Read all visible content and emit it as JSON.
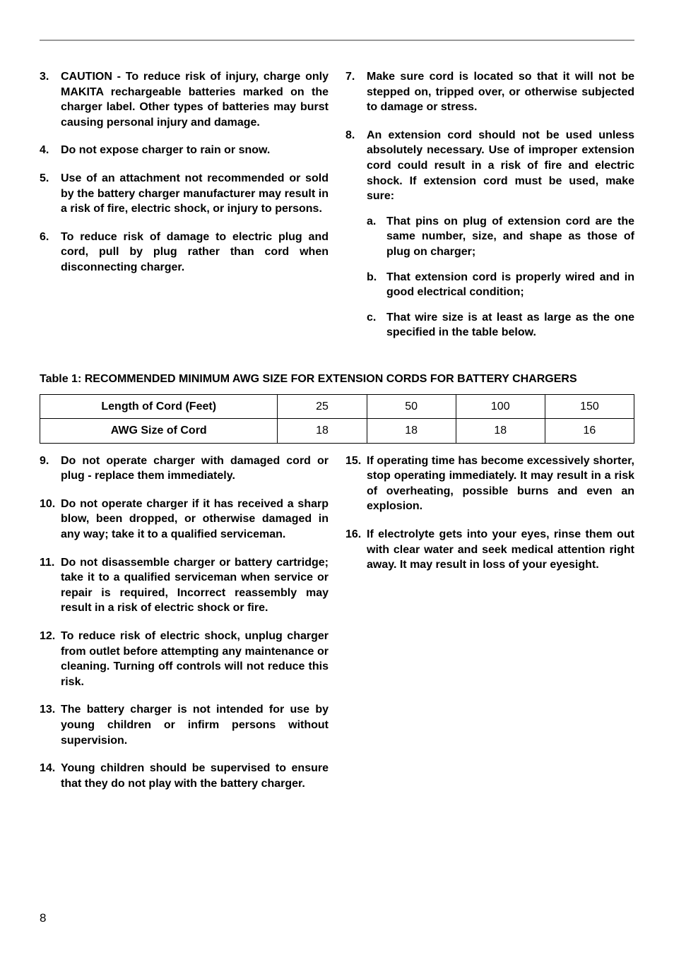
{
  "fontsize_body": 16,
  "fontsize_table_caption": 16,
  "fontsize_page_num": 17,
  "line_height": 1.35,
  "text_color": "#000000",
  "rule_color": "#999999",
  "top_left_list": [
    {
      "num": "3.",
      "text": "CAUTION - To reduce risk of injury, charge only MAKITA rechargeable batteries marked on the charger label. Other types of batteries may burst causing personal injury and damage."
    },
    {
      "num": "4.",
      "text": "Do not expose charger to rain or snow."
    },
    {
      "num": "5.",
      "text": "Use of an attachment not recommended or sold by the battery charger manufacturer may result in a risk of fire, electric shock, or injury to persons."
    },
    {
      "num": "6.",
      "text": "To reduce risk of damage to electric plug and cord, pull by plug rather than cord when disconnecting charger."
    }
  ],
  "top_right_list": [
    {
      "num": "7.",
      "text": "Make sure cord is located so that it will not be stepped on, tripped over, or otherwise subjected to damage or stress."
    },
    {
      "num": "8.",
      "text": "An extension cord should not be used unless absolutely necessary. Use of improper extension cord could result in a risk of fire and electric shock. If extension cord must be used, make sure:",
      "sub": [
        {
          "num": "a.",
          "text": "That pins on plug of extension cord are the same number, size, and shape as those of plug on charger;"
        },
        {
          "num": "b.",
          "text": "That extension cord is properly wired and in good electrical condition;"
        },
        {
          "num": "c.",
          "text": "That wire size is at least as large as the one specified in the table below."
        }
      ]
    }
  ],
  "table_caption": "Table 1: RECOMMENDED MINIMUM AWG SIZE FOR EXTENSION CORDS FOR BATTERY CHARGERS",
  "table": {
    "columns": [
      "Length of Cord (Feet)",
      "25",
      "50",
      "100",
      "150"
    ],
    "rows": [
      [
        "AWG Size of Cord",
        "18",
        "18",
        "18",
        "16"
      ]
    ],
    "col_widths": [
      "40%",
      "15%",
      "15%",
      "15%",
      "15%"
    ],
    "border_color": "#000000"
  },
  "bottom_left_list": [
    {
      "num": "9.",
      "text": "Do not operate charger with damaged cord or plug - replace them immediately."
    },
    {
      "num": "10.",
      "text": "Do not operate charger if it has received a sharp blow, been dropped, or otherwise damaged in any way; take it to a qualified serviceman."
    },
    {
      "num": "11.",
      "text": "Do not disassemble charger or battery cartridge; take it to a qualified serviceman when service or repair is required, Incorrect reassembly may result in a risk of electric shock or fire."
    },
    {
      "num": "12.",
      "text": "To reduce risk of electric shock, unplug charger from outlet before attempting any maintenance or cleaning. Turning off controls will not reduce this risk."
    },
    {
      "num": "13.",
      "text": "The battery charger is not intended for use by young children or infirm persons without supervision."
    },
    {
      "num": "14.",
      "text": "Young children should be supervised to ensure that they do not play with the battery charger."
    }
  ],
  "bottom_right_list": [
    {
      "num": "15.",
      "text": "If operating time has become excessively shorter, stop operating immediately. It may result in a risk of overheating, possible burns and even an explosion."
    },
    {
      "num": "16.",
      "text": "If electrolyte gets into your eyes, rinse them out with clear water and seek medical attention right away. It may result in loss of your eyesight."
    }
  ],
  "page_number": "8"
}
